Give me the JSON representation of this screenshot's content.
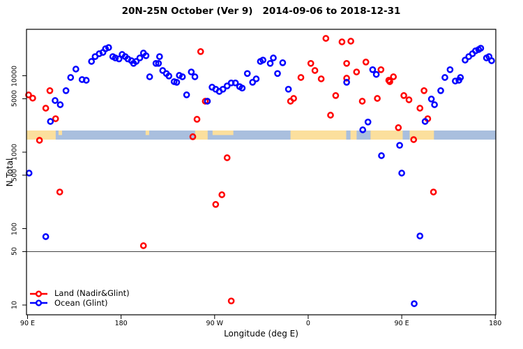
{
  "chart_data": {
    "type": "scatter",
    "title": "20N-25N October (Ver 9)   2014-09-06 to 2018-12-31",
    "xlabel": "Longitude (deg E)",
    "ylabel": "N Total",
    "x_axis": {
      "note": "longitude increases eastward from 90E, wrapping through the dateline and prime meridian back to 180",
      "range_deg": [
        89,
        540.5
      ],
      "ticks": [
        {
          "value": 90,
          "label": "90 E"
        },
        {
          "value": 180,
          "label": "180"
        },
        {
          "value": 270,
          "label": "90 W"
        },
        {
          "value": 360,
          "label": "0"
        },
        {
          "value": 450,
          "label": "90 E"
        },
        {
          "value": 540,
          "label": "180"
        }
      ]
    },
    "y_axis": {
      "scale": "log10",
      "range": [
        7.4,
        40500
      ],
      "ticks": [
        {
          "value": 10,
          "label": "10"
        },
        {
          "value": 50,
          "label": "50"
        },
        {
          "value": 100,
          "label": "100"
        },
        {
          "value": 500,
          "label": "500"
        },
        {
          "value": 1000,
          "label": "1000"
        },
        {
          "value": 5000,
          "label": "5000"
        },
        {
          "value": 10000,
          "label": "10000"
        }
      ]
    },
    "reference_line": {
      "y": 50,
      "color": "#444444"
    },
    "map_band": {
      "description": "20N-25N latitude strip map drawn across the plot",
      "n_top": 1920,
      "n_bottom": 1460,
      "ocean_color": "#a9bfde",
      "land_color": "#fbdf9d",
      "land_segments_lon": [
        {
          "from": 89,
          "to": 117.1,
          "thin": false
        },
        {
          "from": 119.8,
          "to": 123.2,
          "thin": true
        },
        {
          "from": 203.6,
          "to": 207.0,
          "thin": true
        },
        {
          "from": 251.2,
          "to": 263.3,
          "thin": false
        },
        {
          "from": 268.0,
          "to": 288.0,
          "thin": true
        },
        {
          "from": 343.0,
          "to": 396.6,
          "thin": false
        },
        {
          "from": 400.7,
          "to": 406.6,
          "thin": false
        },
        {
          "from": 420.0,
          "to": 450.9,
          "thin": false
        },
        {
          "from": 457.6,
          "to": 481.0,
          "thin": false
        }
      ]
    },
    "legend": {
      "position": "bottom-left",
      "items": [
        {
          "label": "Land (Nadir&Glint)",
          "color": "#ff0000"
        },
        {
          "label": "Ocean (Glint)",
          "color": "#0000ff"
        }
      ]
    },
    "series": [
      {
        "name": "Land (Nadir&Glint)",
        "color": "#ff0000",
        "marker": "open-circle",
        "points": [
          [
            91,
            5610
          ],
          [
            95,
            5090
          ],
          [
            101.5,
            1430
          ],
          [
            107.5,
            3760
          ],
          [
            111.5,
            6370
          ],
          [
            117,
            2740
          ],
          [
            121,
            301
          ],
          [
            201.5,
            59.7
          ],
          [
            249,
            1590
          ],
          [
            253,
            2690
          ],
          [
            256.5,
            20700
          ],
          [
            261,
            4640
          ],
          [
            271,
            207
          ],
          [
            277,
            277
          ],
          [
            282,
            845
          ],
          [
            286,
            11.3
          ],
          [
            343,
            4640
          ],
          [
            346,
            5050
          ],
          [
            353,
            9480
          ],
          [
            362.5,
            14500
          ],
          [
            366.5,
            11700
          ],
          [
            372.5,
            9100
          ],
          [
            377,
            30800
          ],
          [
            381.5,
            3050
          ],
          [
            386.5,
            5500
          ],
          [
            392.5,
            27700
          ],
          [
            397,
            14500
          ],
          [
            397,
            9290
          ],
          [
            401,
            28300
          ],
          [
            406.5,
            11200
          ],
          [
            412,
            4640
          ],
          [
            415.5,
            15100
          ],
          [
            426.5,
            5050
          ],
          [
            430,
            12000
          ],
          [
            437.5,
            8730
          ],
          [
            438.5,
            8360
          ],
          [
            442,
            9690
          ],
          [
            446.8,
            2090
          ],
          [
            452,
            5500
          ],
          [
            457,
            4840
          ],
          [
            461.5,
            1460
          ],
          [
            467.5,
            3760
          ],
          [
            471.5,
            6370
          ],
          [
            475,
            2740
          ],
          [
            480.5,
            301
          ]
        ]
      },
      {
        "name": "Ocean (Glint)",
        "color": "#0000ff",
        "marker": "open-circle",
        "points": [
          [
            91.5,
            532
          ],
          [
            107.5,
            78.5
          ],
          [
            112,
            2520
          ],
          [
            116.5,
            4740
          ],
          [
            121.5,
            4180
          ],
          [
            127,
            6370
          ],
          [
            131.5,
            9480
          ],
          [
            136.5,
            12200
          ],
          [
            142.5,
            8910
          ],
          [
            146.5,
            8730
          ],
          [
            151.5,
            15400
          ],
          [
            155,
            17800
          ],
          [
            159,
            19400
          ],
          [
            162.5,
            20200
          ],
          [
            165,
            22500
          ],
          [
            168,
            23400
          ],
          [
            172,
            17800
          ],
          [
            174.5,
            17100
          ],
          [
            178,
            16600
          ],
          [
            181,
            19000
          ],
          [
            184,
            17800
          ],
          [
            186.5,
            16600
          ],
          [
            190,
            15700
          ],
          [
            192,
            14500
          ],
          [
            194.5,
            15400
          ],
          [
            198,
            17100
          ],
          [
            201.5,
            19800
          ],
          [
            204,
            18300
          ],
          [
            207.5,
            9690
          ],
          [
            213.5,
            14500
          ],
          [
            216,
            14500
          ],
          [
            217,
            17800
          ],
          [
            220,
            11700
          ],
          [
            223.5,
            10700
          ],
          [
            226,
            9910
          ],
          [
            231,
            8360
          ],
          [
            233.5,
            8200
          ],
          [
            236,
            10100
          ],
          [
            239,
            9690
          ],
          [
            243,
            5620
          ],
          [
            247.5,
            11200
          ],
          [
            251,
            9690
          ],
          [
            263,
            4640
          ],
          [
            267.5,
            7080
          ],
          [
            271,
            6660
          ],
          [
            274.5,
            6230
          ],
          [
            278,
            6660
          ],
          [
            282,
            7360
          ],
          [
            286,
            8050
          ],
          [
            290,
            8050
          ],
          [
            294,
            7210
          ],
          [
            296.5,
            6890
          ],
          [
            301.5,
            10700
          ],
          [
            306.5,
            8200
          ],
          [
            310,
            9100
          ],
          [
            314,
            15400
          ],
          [
            316.5,
            16000
          ],
          [
            323.5,
            14500
          ],
          [
            326.5,
            17100
          ],
          [
            330.5,
            10700
          ],
          [
            335.5,
            14800
          ],
          [
            341,
            6660
          ],
          [
            397,
            8200
          ],
          [
            412.5,
            1960
          ],
          [
            417.5,
            2480
          ],
          [
            422,
            12000
          ],
          [
            425.5,
            10400
          ],
          [
            430.5,
            900
          ],
          [
            448,
            1230
          ],
          [
            450,
            532
          ],
          [
            462,
            10.4
          ],
          [
            467.5,
            80
          ],
          [
            472.5,
            2520
          ],
          [
            478.5,
            4950
          ],
          [
            481.5,
            4180
          ],
          [
            487.5,
            6370
          ],
          [
            491.5,
            9480
          ],
          [
            496.5,
            12000
          ],
          [
            501.5,
            8530
          ],
          [
            505,
            8730
          ],
          [
            506.5,
            9480
          ],
          [
            511,
            16000
          ],
          [
            514.5,
            17800
          ],
          [
            518,
            19400
          ],
          [
            521,
            21200
          ],
          [
            524,
            22000
          ],
          [
            526,
            22900
          ],
          [
            531.5,
            17100
          ],
          [
            534,
            17800
          ],
          [
            536.5,
            15700
          ]
        ]
      }
    ]
  }
}
